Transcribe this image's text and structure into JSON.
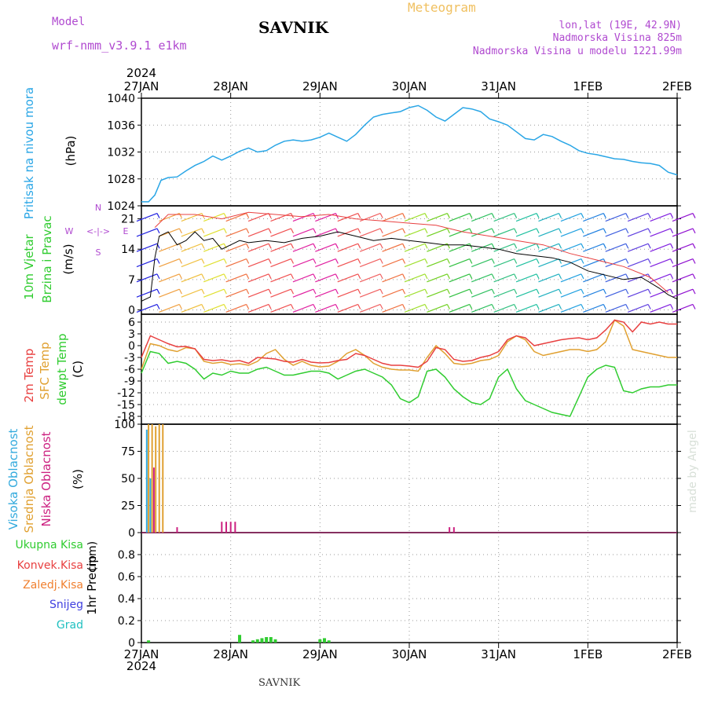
{
  "header": {
    "model_label": "Model",
    "model_name": "wrf-nmm_v3.9.1 e1km",
    "site": "SAVNIK",
    "product": "Meteogram",
    "lonlat": "lon,lat (19E, 42.9N)",
    "elevation": "Nadmorska Visina 825m",
    "model_elevation": "Nadmorska Visina u modelu 1221.99m"
  },
  "footer": {
    "site": "SAVNIK",
    "credit": "made by Angel"
  },
  "time_axis": {
    "year": "2024",
    "labels": [
      "27JAN",
      "28JAN",
      "29JAN",
      "30JAN",
      "31JAN",
      "1FEB",
      "2FEB"
    ]
  },
  "colors": {
    "pressure": "#2aa6e6",
    "temp2m": "#e84040",
    "sfc": "#e0a030",
    "dewpt": "#30cc30",
    "high_cloud": "#33aadd",
    "mid_cloud": "#e0a030",
    "low_cloud": "#cc2080",
    "precip_total": "#30cc30",
    "precip_conv": "#e84040",
    "precip_frozen": "#f08030",
    "snow": "#4040e0",
    "graupel": "#20c0c0",
    "wind_axis": "#b04ad0"
  },
  "chart_data": [
    {
      "type": "line",
      "panel": "pressure",
      "ylabel_title": "Pritisak na nivou mora",
      "ylabel_unit": "(hPa)",
      "yticks": [
        "1024",
        "1028",
        "1032",
        "1036",
        "1040"
      ],
      "ylim": [
        1024,
        1040
      ],
      "xlim_days": [
        0,
        6
      ],
      "series": [
        {
          "x": [
            0,
            0.08,
            0.15,
            0.22,
            0.3,
            0.4,
            0.5,
            0.6,
            0.7,
            0.8,
            0.9,
            1.0,
            1.1,
            1.2,
            1.3,
            1.4,
            1.5,
            1.6,
            1.7,
            1.8,
            1.9,
            2.0,
            2.1,
            2.2,
            2.3,
            2.4,
            2.5,
            2.6,
            2.7,
            2.8,
            2.9,
            3.0,
            3.1,
            3.2,
            3.3,
            3.4,
            3.5,
            3.6,
            3.7,
            3.8,
            3.9,
            4.0,
            4.1,
            4.2,
            4.3,
            4.4,
            4.5,
            4.6,
            4.7,
            4.8,
            4.9,
            5.0,
            5.1,
            5.2,
            5.3,
            5.4,
            5.5,
            5.6,
            5.7,
            5.8,
            5.9,
            6.0
          ],
          "values": [
            1024.6,
            1024.6,
            1025.6,
            1027.8,
            1028.2,
            1028.3,
            1029.2,
            1030.0,
            1030.6,
            1031.4,
            1030.8,
            1031.4,
            1032.1,
            1032.6,
            1032.0,
            1032.2,
            1033.0,
            1033.6,
            1033.8,
            1033.6,
            1033.8,
            1034.2,
            1034.8,
            1034.2,
            1033.6,
            1034.6,
            1036.0,
            1037.2,
            1037.6,
            1037.8,
            1038.0,
            1038.6,
            1038.9,
            1038.2,
            1037.2,
            1036.6,
            1037.6,
            1038.6,
            1038.4,
            1038.0,
            1036.9,
            1036.5,
            1036.0,
            1035.0,
            1034.0,
            1033.8,
            1034.6,
            1034.3,
            1033.6,
            1033.0,
            1032.2,
            1031.8,
            1031.6,
            1031.3,
            1031.0,
            1030.9,
            1030.6,
            1030.4,
            1030.3,
            1030.0,
            1029.0,
            1028.6
          ]
        }
      ]
    },
    {
      "type": "line",
      "panel": "wind",
      "ylabel_title": "10m Vjetar",
      "ylabel_title2": "Brzina i Pravac",
      "ylabel_unit": "(m/s)",
      "compass": {
        "n": "N",
        "s": "S",
        "e": "E",
        "w": "W",
        "arrows": "<-|->"
      },
      "yticks": [
        "0",
        "7",
        "14",
        "21"
      ],
      "ylim": [
        -1,
        24
      ],
      "series": [
        {
          "name": "speed",
          "x": [
            0,
            0.1,
            0.15,
            0.2,
            0.3,
            0.4,
            0.5,
            0.6,
            0.7,
            0.8,
            0.9,
            1.0,
            1.1,
            1.2,
            1.4,
            1.6,
            1.8,
            2.0,
            2.2,
            2.4,
            2.6,
            2.8,
            3.0,
            3.2,
            3.4,
            3.6,
            3.8,
            4.0,
            4.2,
            4.4,
            4.6,
            4.8,
            5.0,
            5.2,
            5.4,
            5.6,
            5.8,
            5.9,
            6.0
          ],
          "values": [
            2.0,
            3.0,
            12.0,
            17.0,
            18.0,
            15.0,
            16.0,
            18.0,
            16.0,
            16.5,
            14.0,
            15.0,
            16.0,
            15.5,
            16.0,
            15.5,
            16.5,
            17.0,
            18.0,
            17.0,
            16.0,
            16.5,
            16.0,
            15.5,
            15.0,
            15.0,
            14.5,
            14.0,
            13.0,
            12.5,
            12.0,
            11.0,
            9.0,
            8.0,
            7.0,
            7.5,
            5.0,
            3.5,
            2.5
          ]
        },
        {
          "name": "gust",
          "x": [
            0.15,
            0.3,
            0.6,
            0.9,
            1.2,
            1.5,
            1.8,
            2.1,
            2.4,
            2.7,
            3.0,
            3.3,
            3.6,
            3.9,
            4.2,
            4.5,
            4.8,
            5.1,
            5.4,
            5.7,
            5.9
          ],
          "values": [
            19.0,
            22.0,
            22.0,
            21.0,
            22.5,
            22.0,
            21.5,
            22.0,
            21.0,
            20.5,
            20.0,
            19.5,
            18.0,
            17.0,
            16.0,
            15.0,
            13.0,
            11.5,
            10.0,
            7.5,
            4.0
          ]
        }
      ],
      "barbs": {
        "x": [
          0,
          0.25,
          0.5,
          0.75,
          1.0,
          1.25,
          1.5,
          1.75,
          2.0,
          2.25,
          2.5,
          2.75,
          3.0,
          3.25,
          3.5,
          3.75,
          4.0,
          4.25,
          4.5,
          4.75,
          5.0,
          5.25,
          5.5,
          5.75,
          6.0
        ],
        "colors": [
          "#2020e0",
          "#f0a040",
          "#f0c040",
          "#e0e030",
          "#f07040",
          "#f05050",
          "#f05050",
          "#e020a0",
          "#e020a0",
          "#f05050",
          "#f06060",
          "#f07040",
          "#a0e030",
          "#70d020",
          "#30c040",
          "#30c060",
          "#30c080",
          "#20c0a0",
          "#20b0c0",
          "#20a0e0",
          "#2080e0",
          "#4060e0",
          "#6040e0",
          "#8020e0",
          "#9010d0"
        ]
      }
    },
    {
      "type": "line",
      "panel": "temperature",
      "ylabel_title": "2m Temp",
      "ylabel_title2": "SFC Temp",
      "ylabel_title3": "dewpt Temp",
      "ylabel_unit": "(C)",
      "yticks": [
        "-18",
        "-15",
        "-12",
        "-9",
        "-6",
        "-3",
        "0",
        "3",
        "6"
      ],
      "ylim": [
        -20,
        8
      ],
      "series": [
        {
          "name": "2m",
          "x": [
            0,
            0.1,
            0.2,
            0.3,
            0.4,
            0.5,
            0.6,
            0.7,
            0.8,
            0.9,
            1.0,
            1.1,
            1.2,
            1.3,
            1.4,
            1.5,
            1.6,
            1.7,
            1.8,
            1.9,
            2.0,
            2.1,
            2.2,
            2.3,
            2.4,
            2.5,
            2.6,
            2.7,
            2.8,
            2.9,
            3.0,
            3.1,
            3.2,
            3.3,
            3.4,
            3.5,
            3.6,
            3.7,
            3.8,
            3.9,
            4.0,
            4.1,
            4.2,
            4.3,
            4.4,
            4.5,
            4.6,
            4.7,
            4.8,
            4.9,
            5.0,
            5.1,
            5.2,
            5.3,
            5.4,
            5.5,
            5.6,
            5.7,
            5.8,
            5.9,
            6.0
          ],
          "values": [
            -3,
            2.5,
            1.5,
            0.5,
            -0.3,
            -0.2,
            -0.8,
            -3.5,
            -3.8,
            -3.6,
            -4.0,
            -3.8,
            -4.5,
            -3.0,
            -3.2,
            -3.4,
            -4.0,
            -4.2,
            -3.5,
            -4.2,
            -4.4,
            -4.3,
            -3.8,
            -3.5,
            -2.0,
            -2.5,
            -3.5,
            -4.5,
            -5.0,
            -5.0,
            -5.2,
            -5.5,
            -4.0,
            -0.5,
            -1.0,
            -3.5,
            -4.0,
            -3.8,
            -3.0,
            -2.5,
            -1.5,
            1.5,
            2.5,
            2.0,
            0.0,
            0.5,
            1.0,
            1.5,
            1.8,
            2.0,
            1.5,
            2.0,
            4.0,
            6.5,
            6.0,
            3.5,
            6.0,
            5.5,
            6.0,
            5.5,
            5.5
          ]
        },
        {
          "name": "sfc",
          "x": [
            0,
            0.1,
            0.2,
            0.3,
            0.4,
            0.5,
            0.6,
            0.7,
            0.8,
            0.9,
            1.0,
            1.1,
            1.2,
            1.3,
            1.4,
            1.5,
            1.6,
            1.7,
            1.8,
            1.9,
            2.0,
            2.1,
            2.2,
            2.3,
            2.4,
            2.5,
            2.6,
            2.7,
            2.8,
            2.9,
            3.0,
            3.1,
            3.2,
            3.3,
            3.4,
            3.5,
            3.6,
            3.7,
            3.8,
            3.9,
            4.0,
            4.1,
            4.2,
            4.3,
            4.4,
            4.5,
            4.6,
            4.7,
            4.8,
            4.9,
            5.0,
            5.1,
            5.2,
            5.3,
            5.4,
            5.5,
            5.6,
            5.7,
            5.8,
            5.9,
            6.0
          ],
          "values": [
            -6,
            0.5,
            0.0,
            -1.0,
            -1.5,
            -0.5,
            -0.8,
            -4.0,
            -4.5,
            -4.2,
            -4.8,
            -4.6,
            -5.0,
            -4.0,
            -2.0,
            -1.0,
            -3.5,
            -5.0,
            -4.0,
            -5.0,
            -5.4,
            -5.2,
            -4.0,
            -2.0,
            -1.0,
            -2.5,
            -4.5,
            -5.5,
            -6.0,
            -6.2,
            -6.2,
            -6.5,
            -3.0,
            0.0,
            -2.0,
            -4.5,
            -4.8,
            -4.5,
            -3.8,
            -3.5,
            -2.5,
            1.0,
            2.5,
            1.5,
            -1.5,
            -2.5,
            -2.0,
            -1.5,
            -1.0,
            -1.0,
            -1.5,
            -1.0,
            1.0,
            6.5,
            5.0,
            -1.0,
            -1.5,
            -2.0,
            -2.5,
            -3.0,
            -3.0
          ]
        },
        {
          "name": "dewpt",
          "x": [
            0,
            0.1,
            0.2,
            0.3,
            0.4,
            0.5,
            0.6,
            0.7,
            0.8,
            0.9,
            1.0,
            1.1,
            1.2,
            1.3,
            1.4,
            1.5,
            1.6,
            1.7,
            1.8,
            1.9,
            2.0,
            2.1,
            2.2,
            2.3,
            2.4,
            2.5,
            2.6,
            2.7,
            2.8,
            2.9,
            3.0,
            3.1,
            3.2,
            3.3,
            3.4,
            3.5,
            3.6,
            3.7,
            3.8,
            3.9,
            4.0,
            4.1,
            4.2,
            4.3,
            4.4,
            4.5,
            4.6,
            4.7,
            4.8,
            4.9,
            5.0,
            5.1,
            5.2,
            5.3,
            5.4,
            5.5,
            5.6,
            5.7,
            5.8,
            5.9,
            6.0
          ],
          "values": [
            -7,
            -1.5,
            -2.0,
            -4.5,
            -4.0,
            -4.5,
            -6.0,
            -8.5,
            -7.0,
            -7.5,
            -6.5,
            -7.0,
            -7.0,
            -6.0,
            -5.5,
            -6.5,
            -7.5,
            -7.5,
            -7.0,
            -6.5,
            -6.5,
            -7.0,
            -8.5,
            -7.5,
            -6.5,
            -6.0,
            -7.0,
            -8.0,
            -10.0,
            -13.5,
            -14.5,
            -13.0,
            -6.5,
            -6.0,
            -8.0,
            -11.0,
            -13.0,
            -14.5,
            -15.0,
            -13.5,
            -8.0,
            -6.0,
            -11.0,
            -14.0,
            -15.0,
            -16.0,
            -17.0,
            -17.5,
            -18.0,
            -13.0,
            -8.0,
            -6.0,
            -5.0,
            -5.5,
            -11.5,
            -12.0,
            -11.0,
            -10.5,
            -10.5,
            -10.0,
            -10.0
          ]
        }
      ]
    },
    {
      "type": "bar",
      "panel": "cloud",
      "ylabel_title": "Visoka Oblacnost",
      "ylabel_title2": "Srednja Oblacnost",
      "ylabel_title3": "Niska Oblacnost",
      "ylabel_unit": "(%)",
      "yticks": [
        "0",
        "25",
        "50",
        "75",
        "100"
      ],
      "ylim": [
        0,
        100
      ],
      "series": [
        {
          "name": "high",
          "x": [
            0.06,
            0.1
          ],
          "values": [
            95,
            50
          ]
        },
        {
          "name": "mid",
          "x": [
            0.08,
            0.12,
            0.16,
            0.2,
            0.24
          ],
          "values": [
            100,
            100,
            98,
            100,
            100
          ]
        },
        {
          "name": "low",
          "x": [
            0.14,
            0.4,
            0.9,
            0.95,
            1.0,
            1.05,
            3.45,
            3.5
          ],
          "values": [
            60,
            5,
            10,
            10,
            10,
            10,
            5,
            5
          ]
        }
      ]
    },
    {
      "type": "bar",
      "panel": "precip",
      "ylabel_title": "1hr Precip",
      "ylabel_unit": "(mm)",
      "legend": [
        "Ukupna Kisa",
        "Konvek.Kisa",
        "Zaledj.Kisa",
        "Snijeg",
        "Grad"
      ],
      "yticks": [
        "0",
        "0.2",
        "0.4",
        "0.6",
        "0.8"
      ],
      "ylim": [
        0,
        1.0
      ],
      "series": [
        {
          "name": "total",
          "x": [
            0.08,
            1.1,
            1.25,
            1.3,
            1.35,
            1.4,
            1.45,
            1.5,
            2.0,
            2.05,
            2.1
          ],
          "values": [
            0.02,
            0.07,
            0.02,
            0.03,
            0.04,
            0.05,
            0.05,
            0.03,
            0.03,
            0.04,
            0.02
          ]
        }
      ]
    }
  ]
}
